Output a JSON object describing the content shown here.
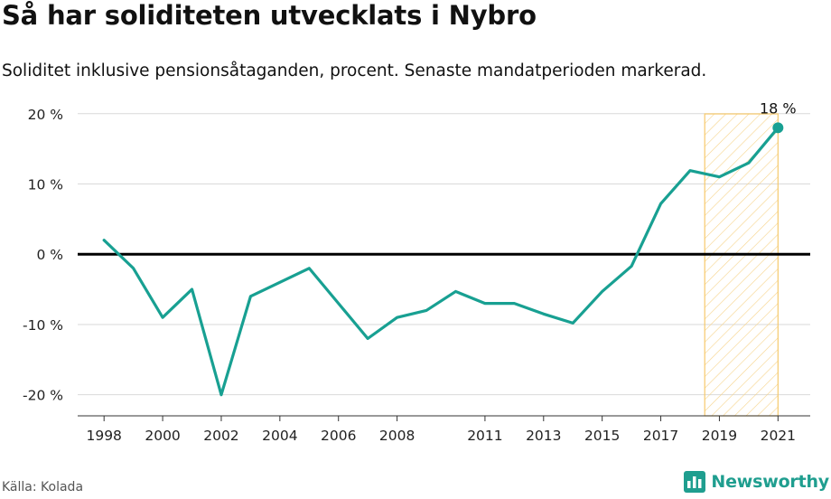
{
  "header": {
    "title": "Så har soliditeten utvecklats i Nybro",
    "subtitle": "Soliditet inklusive pensionsåtaganden, procent. Senaste mandatperioden markerad."
  },
  "footer": {
    "source": "Källa: Kolada",
    "brand": "Newsworthy",
    "brand_icon": "bar-chart-logo-icon"
  },
  "colors": {
    "line": "#18a092",
    "highlight_stroke": "#f6c96b",
    "highlight_hatch": "#f6d38a",
    "zero_line": "#000000",
    "grid": "#d9d9d9"
  },
  "chart_data": {
    "type": "line",
    "x": [
      1998,
      1999,
      2000,
      2001,
      2002,
      2003,
      2004,
      2005,
      2006,
      2007,
      2008,
      2009,
      2010,
      2011,
      2012,
      2013,
      2014,
      2015,
      2016,
      2017,
      2018,
      2019,
      2020,
      2021
    ],
    "series": [
      {
        "values": [
          2,
          -2,
          -9,
          -5,
          -20,
          -6,
          -4,
          -2,
          -7,
          -12,
          -9,
          -8,
          -5.3,
          -7,
          -7,
          -8.5,
          -9.8,
          -5.3,
          -1.7,
          7.2,
          11.9,
          11,
          13,
          18
        ]
      }
    ],
    "xticks": [
      1998,
      2000,
      2002,
      2004,
      2006,
      2008,
      2011,
      2013,
      2015,
      2017,
      2019,
      2021
    ],
    "xtick_labels": [
      "1998",
      "2000",
      "2002",
      "2004",
      "2006",
      "2008",
      "2011",
      "2013",
      "2015",
      "2017",
      "2019",
      "2021"
    ],
    "yticks": [
      20,
      10,
      0,
      -10,
      -20
    ],
    "ytick_labels": [
      "20 %",
      "10 %",
      "0 %",
      "-10 %",
      "-20 %"
    ],
    "ylim": [
      -23,
      21
    ],
    "xlim": [
      1997.1,
      2022.1
    ],
    "highlight_period": [
      2018.5,
      2021
    ],
    "last_value_label": "18 %",
    "grid": true,
    "legend": "none"
  }
}
